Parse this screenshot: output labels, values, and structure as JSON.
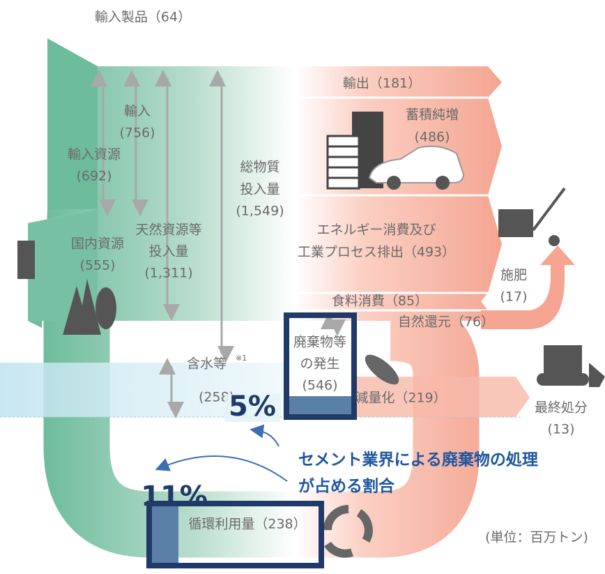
{
  "diagram": {
    "import_products": "輸入製品（64）",
    "export": "輸出（181）",
    "stock": [
      "蓄積純増",
      "(486)"
    ],
    "imports": [
      "輸入",
      "(756)"
    ],
    "import_resources": [
      "輸入資源",
      "(692)"
    ],
    "total_input": [
      "総物質",
      "投入量",
      "(1,549)"
    ],
    "natural_input": [
      "天然資源等",
      "投入量",
      "(1,311)"
    ],
    "domestic": [
      "国内資源",
      "(555)"
    ],
    "energy": [
      "エネルギー消費及び",
      "工業プロセス排出（493）"
    ],
    "fertilizer": [
      "施肥",
      "(17)"
    ],
    "food": "食料消費（85）",
    "natural_return": "自然還元（76）",
    "waste": [
      "廃棄物等",
      "の発生",
      "(546)"
    ],
    "water": {
      "label": "含水等",
      "sup": "※1",
      "value": "(258)"
    },
    "reduction": "減量化（219）",
    "final_disposal": [
      "最終処分",
      "(13)"
    ],
    "share_waste": "5%",
    "caption": [
      "セメント業界による廃棄物の処理",
      "が占める割合"
    ],
    "share_recycle": "11%",
    "recycle": "循環利用量（238）",
    "unit": "(単位：百万トン)"
  }
}
